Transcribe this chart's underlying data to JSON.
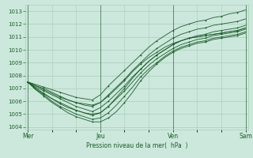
{
  "bg_color": "#cce8dc",
  "grid_color": "#aaccbb",
  "line_color": "#1a5c2a",
  "xlabel_display": "Pression niveau de la mer(  hPa  )",
  "ylim": [
    1003.8,
    1013.5
  ],
  "yticks": [
    1004,
    1005,
    1006,
    1007,
    1008,
    1009,
    1010,
    1011,
    1012,
    1013
  ],
  "day_labels": [
    "Mer",
    "Jeu",
    "Ven",
    "Sam"
  ],
  "day_positions": [
    0,
    9,
    18,
    27
  ],
  "total_points": 28,
  "series": [
    [
      1007.5,
      1007.3,
      1007.1,
      1006.9,
      1006.7,
      1006.5,
      1006.3,
      1006.2,
      1006.1,
      1006.5,
      1007.2,
      1007.8,
      1008.4,
      1009.0,
      1009.6,
      1010.2,
      1010.7,
      1011.1,
      1011.5,
      1011.8,
      1012.0,
      1012.2,
      1012.3,
      1012.5,
      1012.6,
      1012.8,
      1012.9,
      1013.1
    ],
    [
      1007.5,
      1007.2,
      1007.0,
      1006.7,
      1006.4,
      1006.1,
      1005.9,
      1005.7,
      1005.6,
      1005.9,
      1006.5,
      1007.1,
      1007.7,
      1008.4,
      1009.0,
      1009.6,
      1010.1,
      1010.5,
      1010.9,
      1011.2,
      1011.4,
      1011.6,
      1011.7,
      1011.9,
      1012.0,
      1012.1,
      1012.2,
      1012.4
    ],
    [
      1007.5,
      1007.1,
      1006.8,
      1006.5,
      1006.2,
      1005.9,
      1005.6,
      1005.4,
      1005.2,
      1005.5,
      1006.0,
      1006.6,
      1007.2,
      1007.9,
      1008.5,
      1009.1,
      1009.6,
      1010.0,
      1010.4,
      1010.7,
      1010.9,
      1011.1,
      1011.2,
      1011.4,
      1011.5,
      1011.6,
      1011.7,
      1011.9
    ],
    [
      1007.5,
      1007.0,
      1006.6,
      1006.2,
      1005.9,
      1005.6,
      1005.3,
      1005.1,
      1004.9,
      1005.1,
      1005.6,
      1006.2,
      1006.8,
      1007.5,
      1008.2,
      1008.8,
      1009.3,
      1009.7,
      1010.1,
      1010.4,
      1010.6,
      1010.8,
      1010.9,
      1011.1,
      1011.2,
      1011.3,
      1011.4,
      1011.6
    ],
    [
      1007.5,
      1006.9,
      1006.5,
      1006.0,
      1005.6,
      1005.3,
      1005.0,
      1004.8,
      1004.6,
      1004.7,
      1005.1,
      1005.7,
      1006.4,
      1007.1,
      1007.9,
      1008.5,
      1009.0,
      1009.5,
      1009.9,
      1010.2,
      1010.4,
      1010.6,
      1010.7,
      1010.9,
      1011.0,
      1011.1,
      1011.2,
      1011.4
    ],
    [
      1007.5,
      1006.9,
      1006.4,
      1005.9,
      1005.5,
      1005.1,
      1004.8,
      1004.6,
      1004.4,
      1004.4,
      1004.7,
      1005.2,
      1005.9,
      1006.7,
      1007.6,
      1008.3,
      1008.9,
      1009.4,
      1009.8,
      1010.1,
      1010.3,
      1010.5,
      1010.6,
      1010.8,
      1010.9,
      1011.0,
      1011.1,
      1011.3
    ],
    [
      1007.5,
      1007.0,
      1006.6,
      1006.2,
      1005.8,
      1005.5,
      1005.3,
      1005.1,
      1005.0,
      1005.1,
      1005.6,
      1006.3,
      1007.0,
      1007.8,
      1008.5,
      1009.1,
      1009.6,
      1010.0,
      1010.4,
      1010.7,
      1010.9,
      1011.0,
      1011.1,
      1011.2,
      1011.3,
      1011.4,
      1011.5,
      1011.7
    ],
    [
      1007.5,
      1007.2,
      1006.9,
      1006.6,
      1006.3,
      1006.1,
      1005.9,
      1005.8,
      1005.7,
      1005.9,
      1006.4,
      1007.0,
      1007.6,
      1008.3,
      1008.9,
      1009.4,
      1009.8,
      1010.2,
      1010.5,
      1010.7,
      1010.9,
      1011.0,
      1011.1,
      1011.2,
      1011.3,
      1011.4,
      1011.5,
      1011.7
    ]
  ]
}
